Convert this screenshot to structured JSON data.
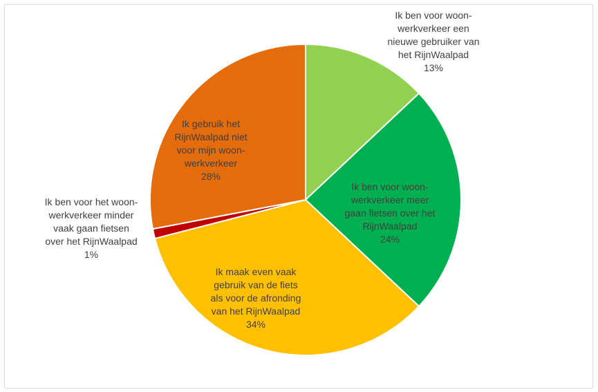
{
  "chart_data": {
    "type": "pie",
    "title": "",
    "slices": [
      {
        "label": "Ik ben voor woon-werkverkeer een nieuwe gebruiker van het RijnWaalpad",
        "lines": [
          "Ik ben voor woon-",
          "werkverkeer een",
          "nieuwe gebruiker van",
          "het RijnWaalpad"
        ],
        "pct_label": "13%",
        "value": 13,
        "color": "#92D050",
        "text_color": "#404040"
      },
      {
        "label": "Ik ben voor woon-werkverkeer meer gaan fietsen over het RijnWaalpad",
        "lines": [
          "Ik ben voor woon-",
          "werkverkeer meer",
          "gaan fietsen over het",
          "RijnWaalpad"
        ],
        "pct_label": "24%",
        "value": 24,
        "color": "#00B050",
        "text_color": "#404040"
      },
      {
        "label": "Ik maak even vaak gebruik van de fiets als voor de afronding van het RijnWaalpad",
        "lines": [
          "Ik maak even vaak",
          "gebruik van de fiets",
          "als voor de afronding",
          "van het RijnWaalpad"
        ],
        "pct_label": "34%",
        "value": 34,
        "color": "#FFC000",
        "text_color": "#404040"
      },
      {
        "label": "Ik ben voor het woon-werkverkeer minder vaak gaan fietsen over het RijnWaalpad",
        "lines": [
          "Ik ben voor het woon-",
          "werkverkeer minder",
          "vaak gaan fietsen",
          "over het RijnWaalpad"
        ],
        "pct_label": "1%",
        "value": 1,
        "color": "#C00000",
        "text_color": "#404040"
      },
      {
        "label": "Ik gebruik het RijnWaalpad niet voor mijn woon-werkverkeer",
        "lines": [
          "Ik gebruik het",
          "RijnWaalpad niet",
          "voor mijn woon-",
          "werkverkeer"
        ],
        "pct_label": "28%",
        "value": 28,
        "color": "#E46C0A",
        "text_color": "#404040"
      }
    ]
  }
}
